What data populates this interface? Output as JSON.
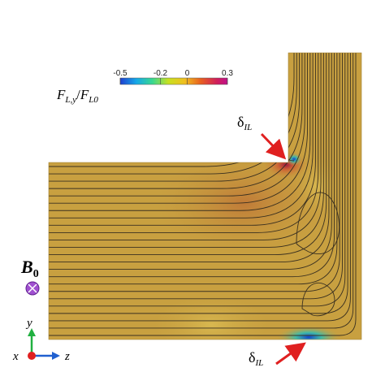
{
  "colorbar": {
    "range": [
      -0.5,
      0.3
    ],
    "ticks": [
      -0.5,
      -0.2,
      0,
      0.3
    ],
    "label": {
      "numerator": "F",
      "numerator_sub": "L,y",
      "slash": "/",
      "denominator": "F",
      "denominator_sub": "L0"
    }
  },
  "annotations": {
    "delta_top": {
      "symbol": "δ",
      "sub": "IL"
    },
    "delta_bottom": {
      "symbol": "δ",
      "sub": "IL"
    },
    "field": {
      "symbol": "B",
      "sub": "0"
    }
  },
  "axes": {
    "x": "x",
    "y": "y",
    "z": "z"
  }
}
